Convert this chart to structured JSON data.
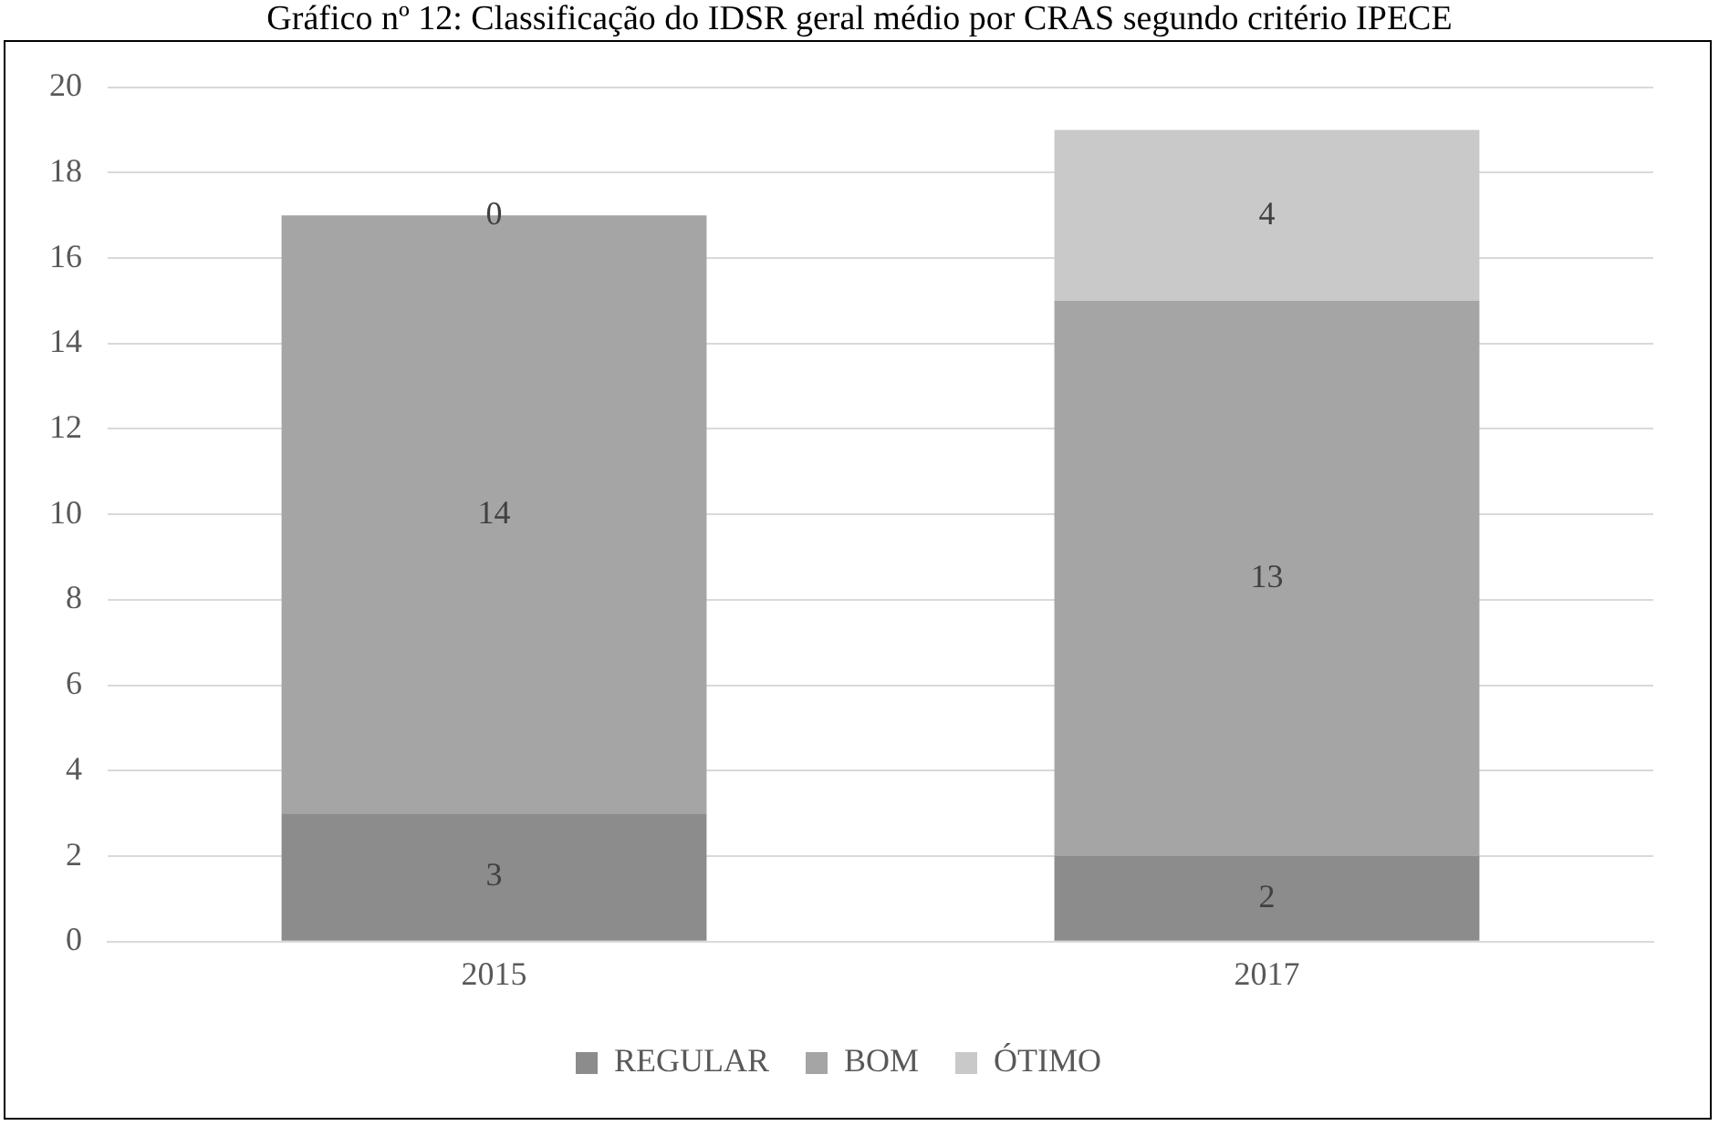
{
  "chart_data": {
    "type": "bar",
    "title": "Gráfico nº 12: Classificação do IDSR geral médio por CRAS segundo critério IPECE",
    "categories": [
      "2015",
      "2017"
    ],
    "stacked": true,
    "series": [
      {
        "name": "REGULAR",
        "color": "#8c8c8c",
        "values": [
          3,
          2
        ]
      },
      {
        "name": "BOM",
        "color": "#a5a5a5",
        "values": [
          14,
          13
        ]
      },
      {
        "name": "ÓTIMO",
        "color": "#c9c9c9",
        "values": [
          0,
          4
        ]
      }
    ],
    "ylim": [
      0,
      20
    ],
    "yticks": [
      0,
      2,
      4,
      6,
      8,
      10,
      12,
      14,
      16,
      18,
      20
    ],
    "grid": "y",
    "legend": "bottom",
    "data_labels": true
  }
}
